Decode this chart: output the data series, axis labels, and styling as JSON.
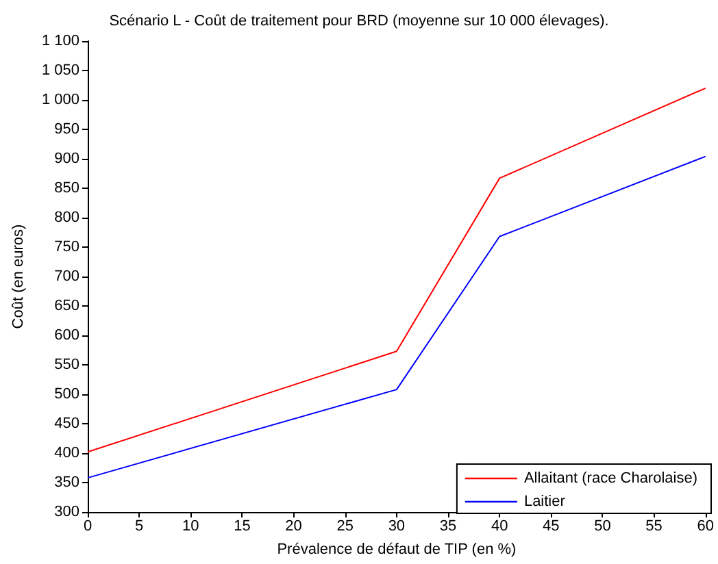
{
  "chart_data": {
    "type": "line",
    "title": "Scénario L - Coût de traitement pour BRD (moyenne sur 10 000 élevages).",
    "xlabel": "Prévalence de défaut de TIP (en %)",
    "ylabel": "Coût (en euros)",
    "x": [
      0,
      30,
      40,
      60
    ],
    "series": [
      {
        "name": "Allaitant (race Charolaise)",
        "color": "#ff0000",
        "values": [
          402,
          573,
          867,
          1020
        ]
      },
      {
        "name": "Laitier",
        "color": "#0000ff",
        "values": [
          358,
          508,
          768,
          904
        ]
      }
    ],
    "xlim": [
      0,
      60
    ],
    "xticks": [
      0,
      5,
      10,
      15,
      20,
      25,
      30,
      35,
      40,
      45,
      50,
      55,
      60
    ],
    "ylim": [
      300,
      1100
    ],
    "yticks": [
      300,
      350,
      400,
      450,
      500,
      550,
      600,
      650,
      700,
      750,
      800,
      850,
      900,
      950,
      {
        "value": 1000,
        "label": "1 000"
      },
      {
        "value": 1050,
        "label": "1 050"
      },
      {
        "value": 1100,
        "label": "1 100"
      }
    ],
    "grid": false,
    "legend": "bottom right",
    "marker": "none",
    "line_style": "solid"
  }
}
